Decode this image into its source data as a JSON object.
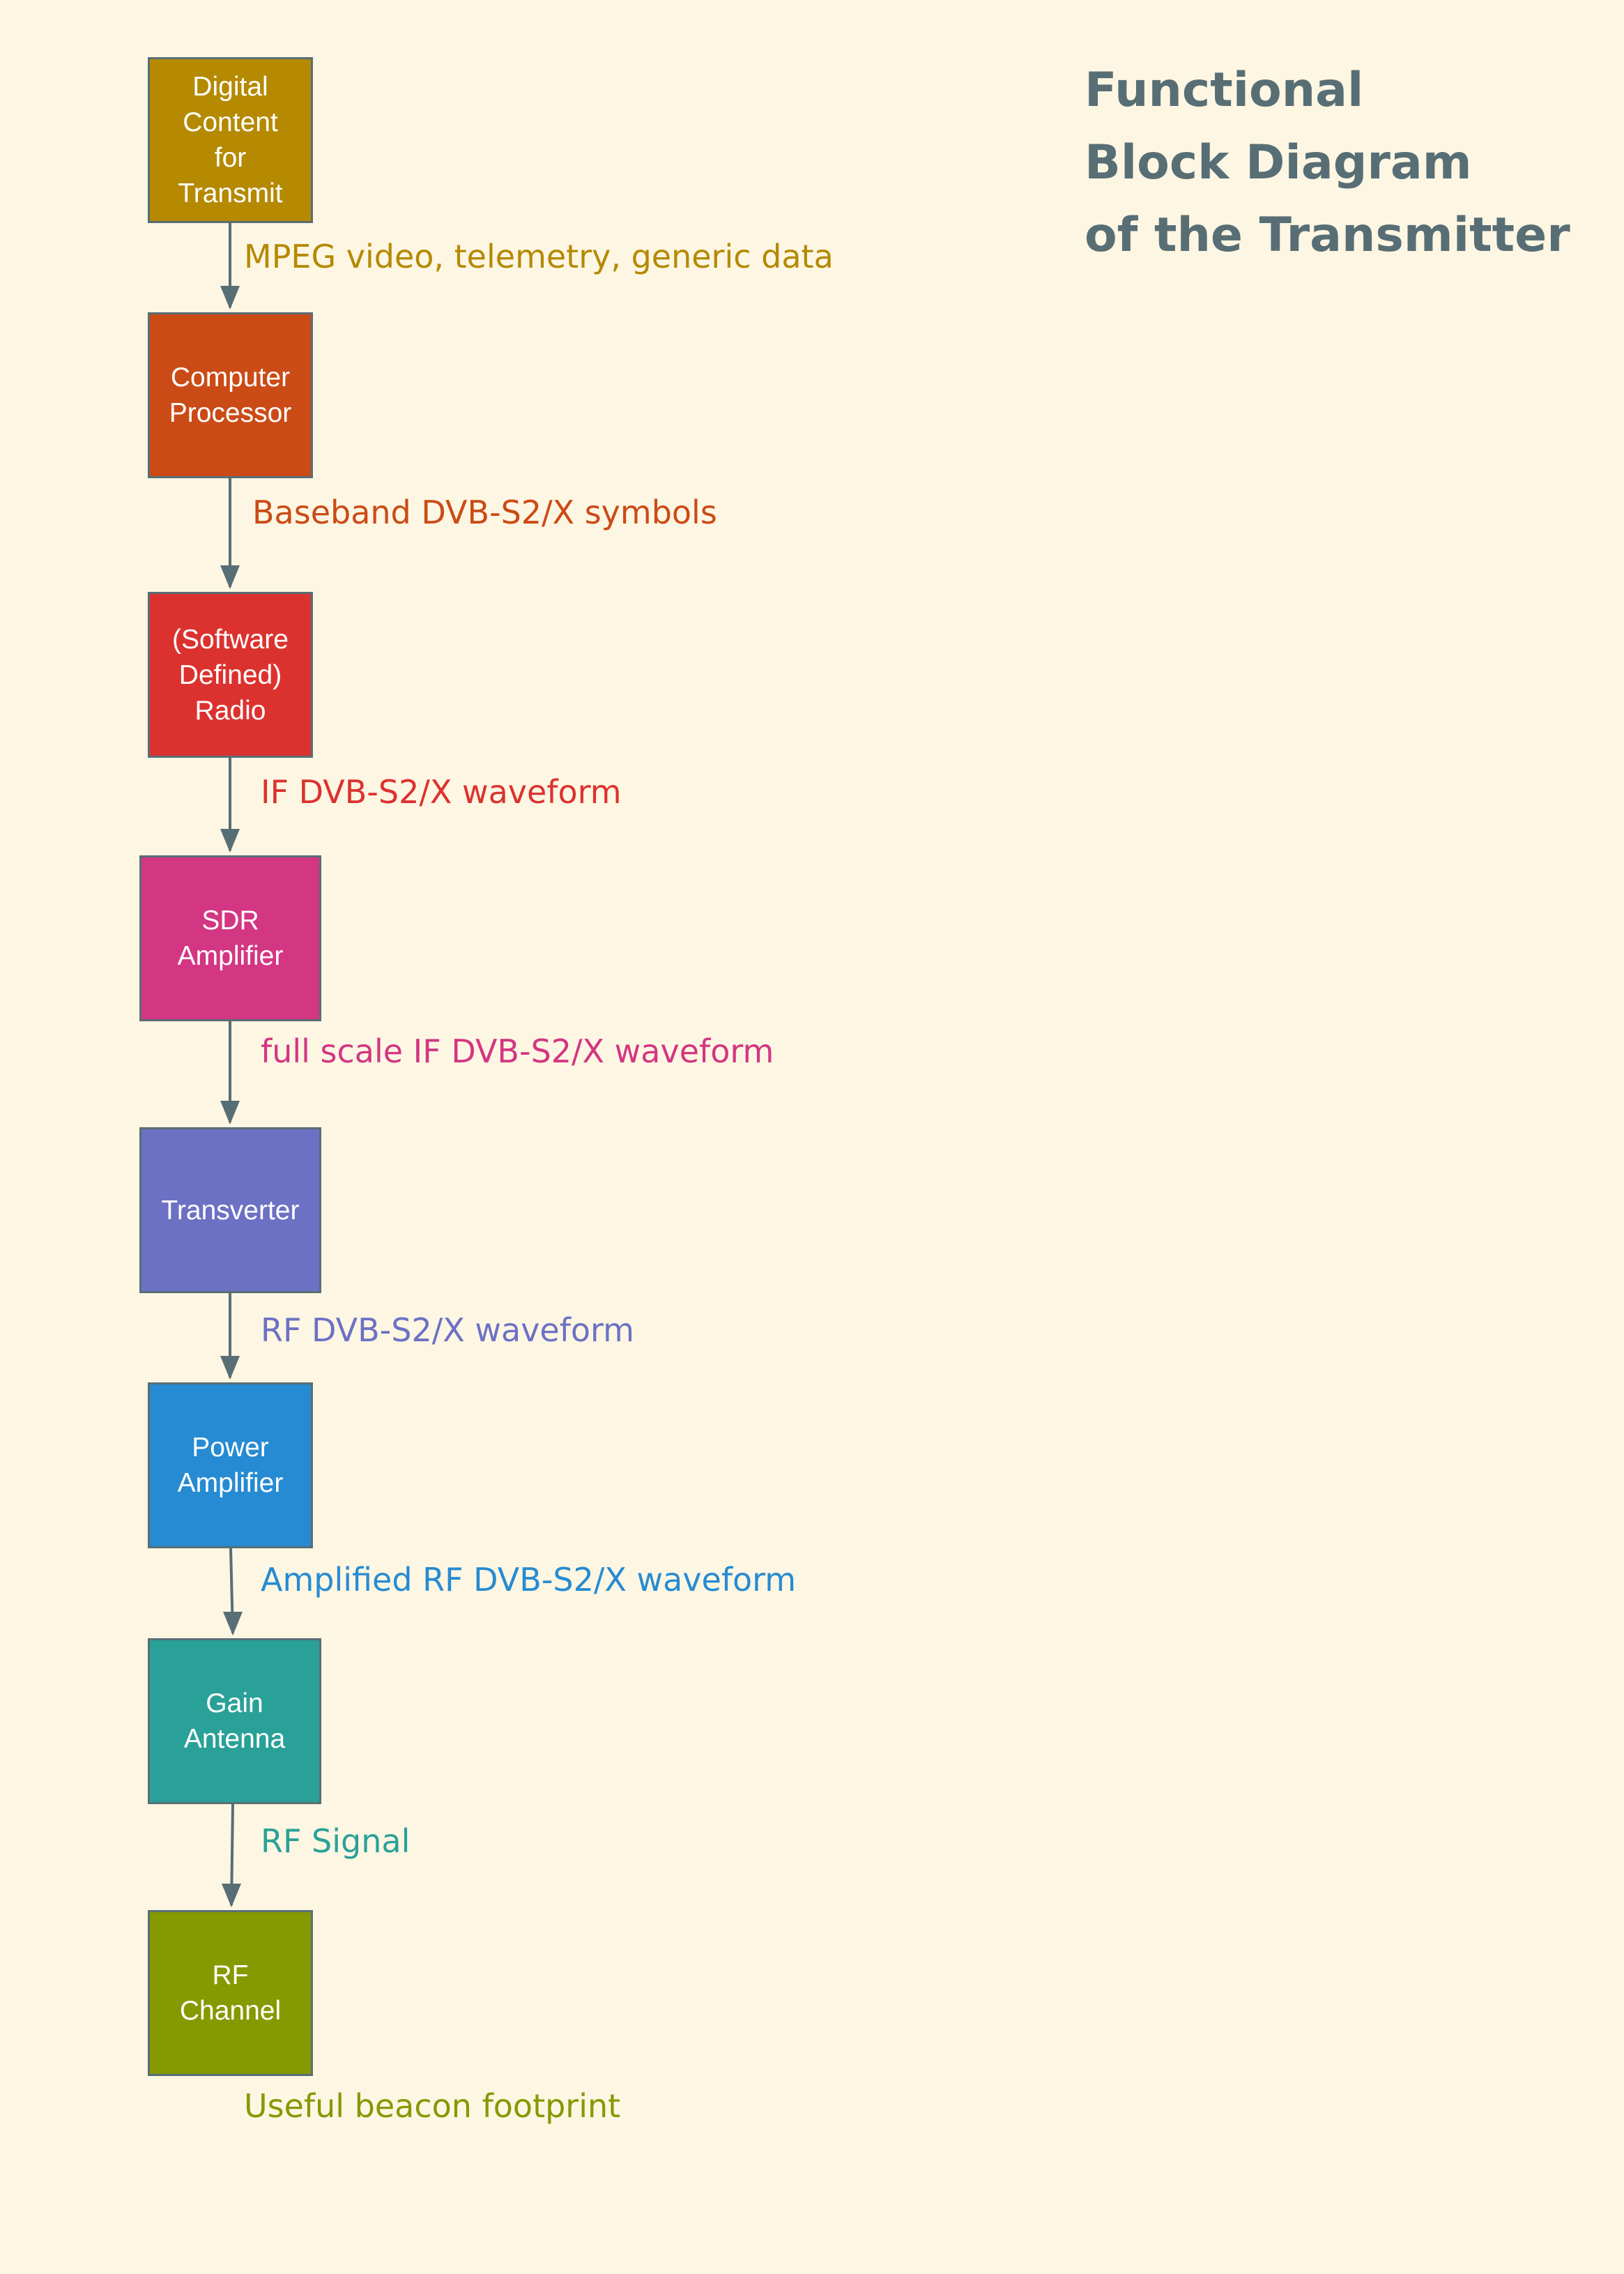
{
  "title": {
    "lines": [
      "Functional",
      "Block Diagram",
      "of the Transmitter"
    ]
  },
  "colors": {
    "background": "#fdf6e3",
    "connector": "#586e75",
    "title": "#586e75"
  },
  "blocks": [
    {
      "lines": [
        "Digital",
        "Content",
        "for",
        "Transmit"
      ],
      "color": "#b58900"
    },
    {
      "lines": [
        "Computer",
        "Processor"
      ],
      "color": "#cb4b16"
    },
    {
      "lines": [
        "(Software",
        "Defined)",
        "Radio"
      ],
      "color": "#dc322f"
    },
    {
      "lines": [
        "SDR",
        "Amplifier"
      ],
      "color": "#d33682"
    },
    {
      "lines": [
        "Transverter"
      ],
      "color": "#6c71c4"
    },
    {
      "lines": [
        "Power",
        "Amplifier"
      ],
      "color": "#268bd2"
    },
    {
      "lines": [
        "Gain",
        "Antenna"
      ],
      "color": "#2aa198"
    },
    {
      "lines": [
        "RF",
        "Channel"
      ],
      "color": "#859900"
    }
  ],
  "labels": [
    {
      "text": "MPEG video, telemetry, generic data",
      "color": "#b58900"
    },
    {
      "text": "Baseband DVB-S2/X symbols",
      "color": "#cb4b16"
    },
    {
      "text": "IF DVB-S2/X waveform",
      "color": "#dc322f"
    },
    {
      "text": "full scale IF DVB-S2/X waveform",
      "color": "#d33682"
    },
    {
      "text": "RF DVB-S2/X waveform",
      "color": "#6c71c4"
    },
    {
      "text": "Amplified RF DVB-S2/X waveform",
      "color": "#268bd2"
    },
    {
      "text": "RF Signal",
      "color": "#2aa198"
    },
    {
      "text": "Useful beacon footprint",
      "color": "#859900"
    }
  ]
}
